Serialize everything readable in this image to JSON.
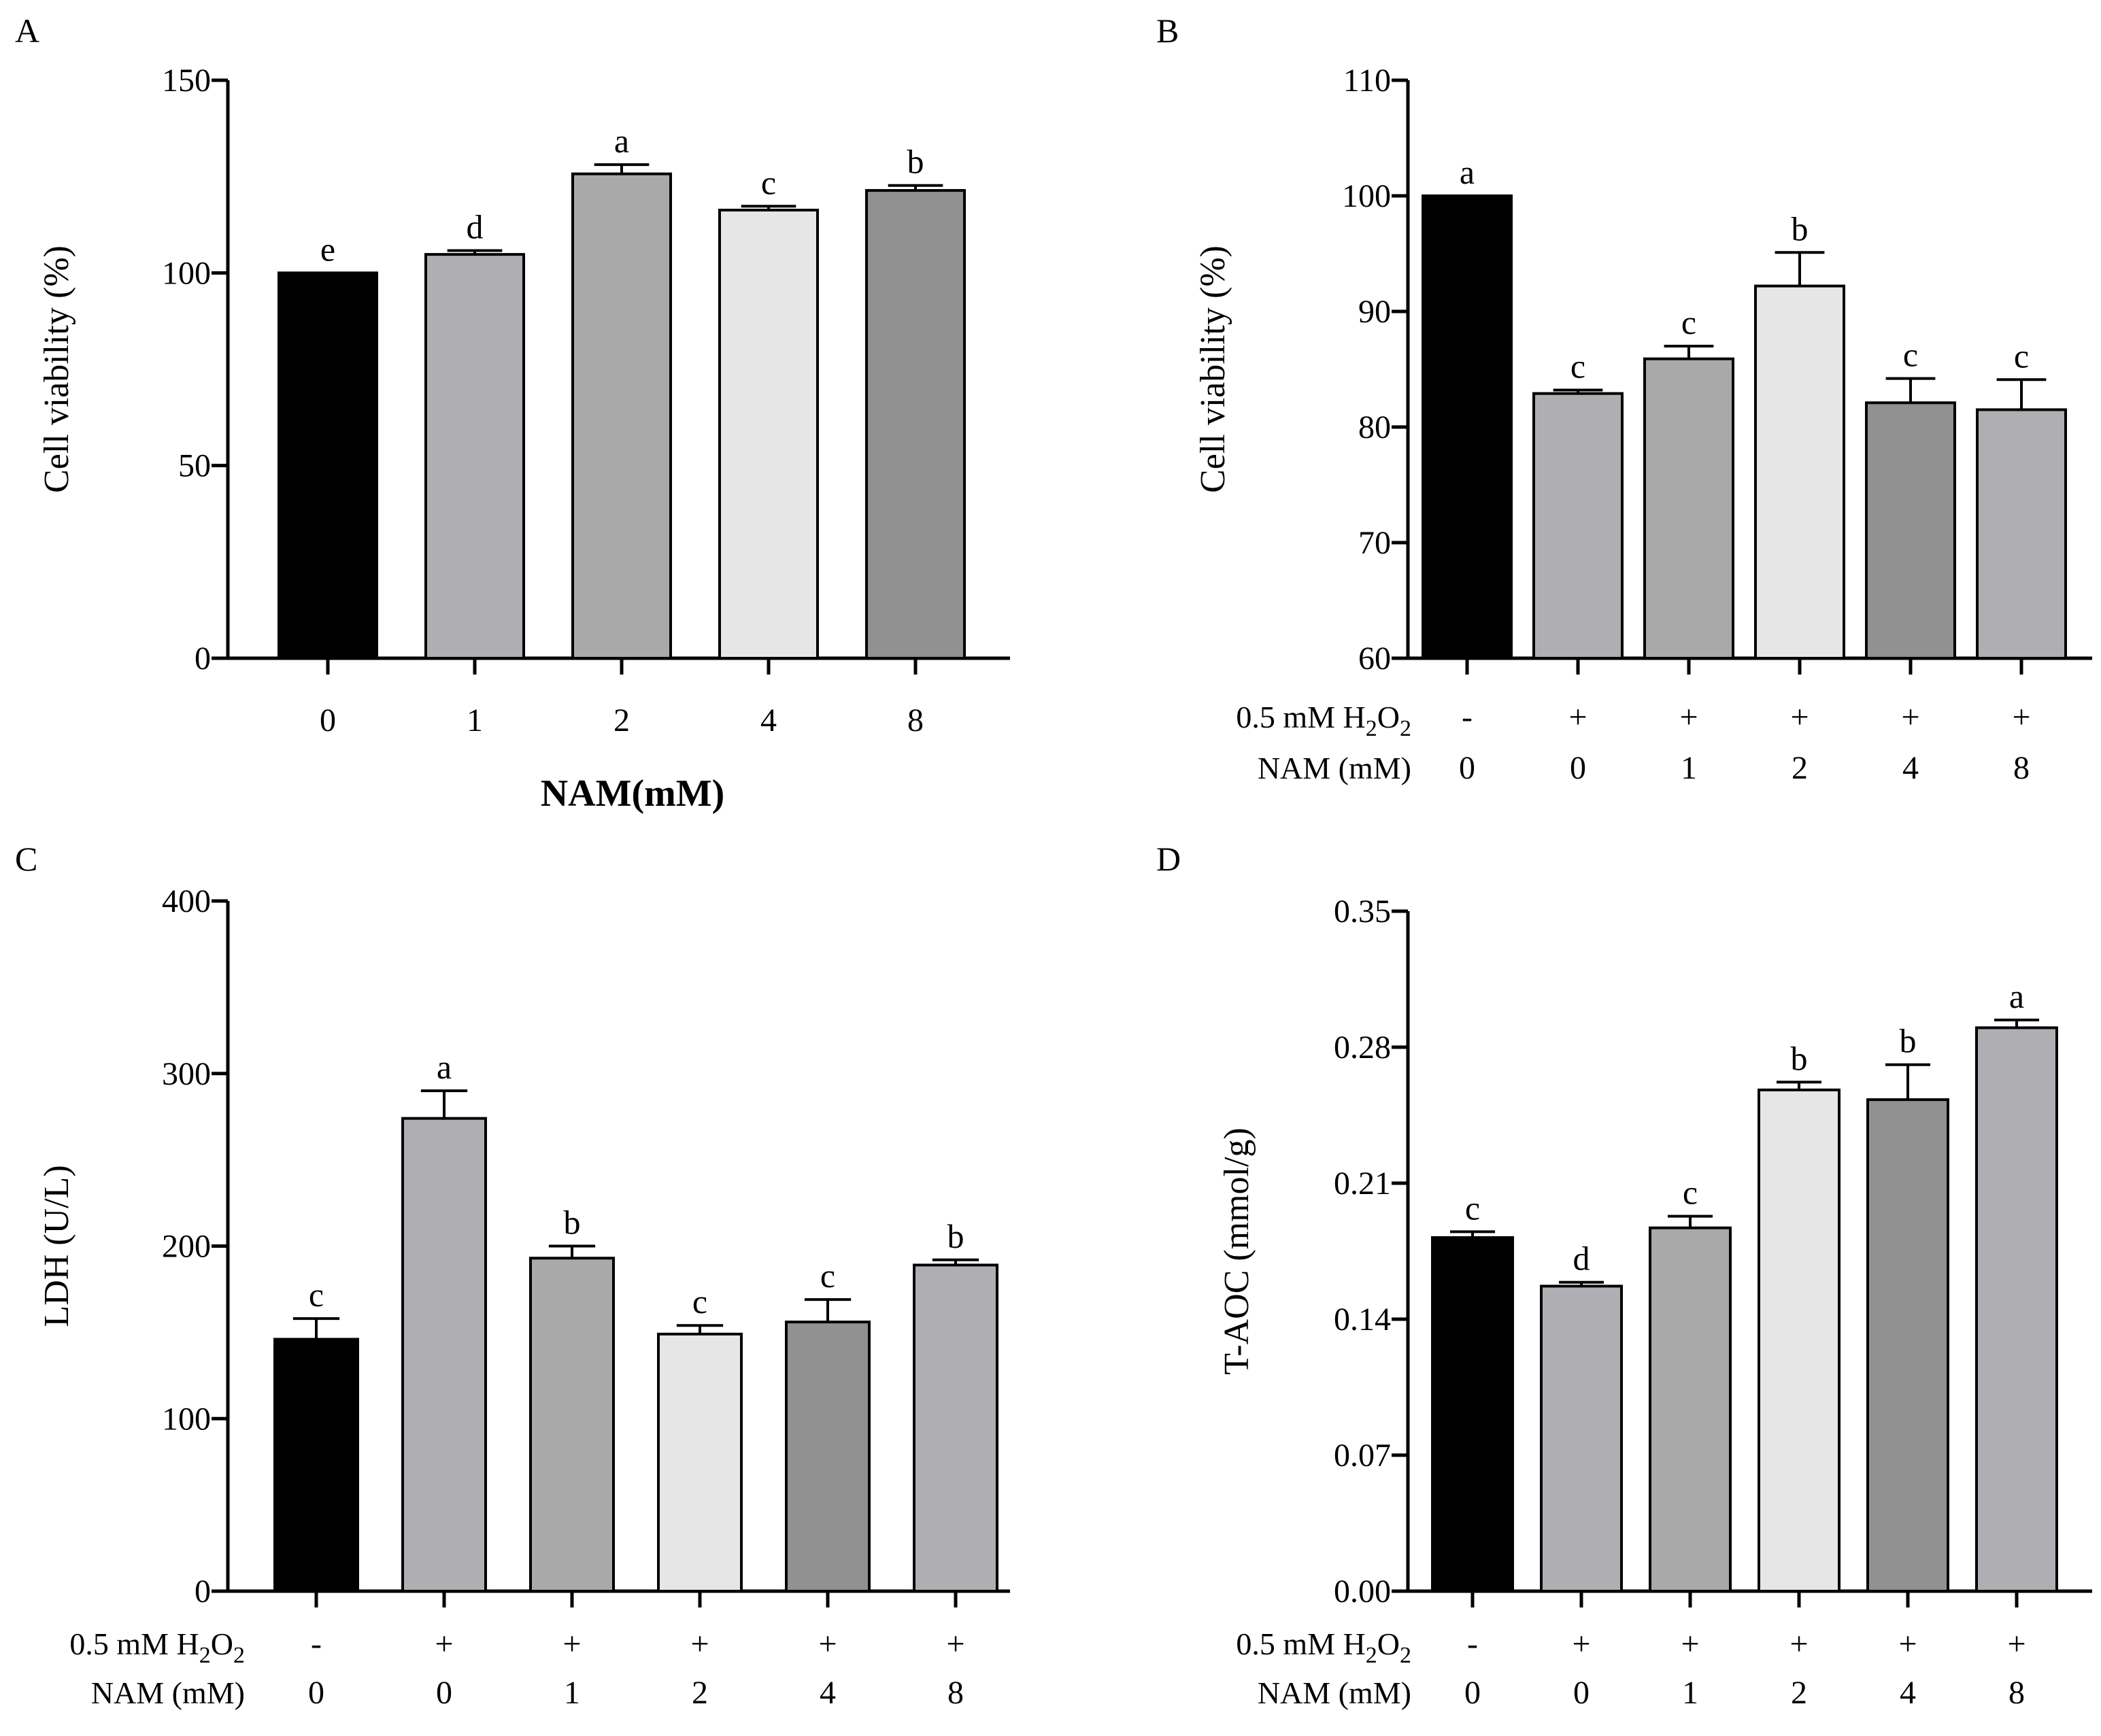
{
  "chart_data": [
    {
      "panel": "A",
      "type": "bar",
      "ylabel": "Cell viability (%)",
      "xlabel": "NAM(mM)",
      "categories": [
        "0",
        "1",
        "2",
        "4",
        "8"
      ],
      "values": [
        100,
        104.8,
        125.7,
        116.3,
        121.4
      ],
      "errors": [
        0,
        1.0,
        2.4,
        1.0,
        1.3
      ],
      "sig": [
        "e",
        "d",
        "a",
        "c",
        "b"
      ],
      "colors": [
        "#000000",
        "#aeaeb3",
        "#a9a9a9",
        "#e6e6e6",
        "#919191"
      ],
      "ylim": [
        0,
        150
      ],
      "yticks": [
        "0",
        "50",
        "100",
        "150"
      ],
      "yticks_values": [
        0,
        50,
        100,
        150
      ],
      "conditions": []
    },
    {
      "panel": "B",
      "type": "bar",
      "ylabel": "Cell viability (%)",
      "xlabel": "",
      "categories": [
        "1",
        "2",
        "3",
        "4",
        "5",
        "6"
      ],
      "values": [
        100,
        82.9,
        85.9,
        92.2,
        82.1,
        81.5
      ],
      "errors": [
        0,
        0.3,
        1.1,
        2.9,
        2.1,
        2.6
      ],
      "sig": [
        "a",
        "c",
        "c",
        "b",
        "c",
        "c"
      ],
      "colors": [
        "#000000",
        "#aeaeb3",
        "#a9a9a9",
        "#e6e6e6",
        "#919191",
        "#aeaeb3"
      ],
      "ylim": [
        60,
        110
      ],
      "yticks": [
        "60",
        "70",
        "80",
        "90",
        "100",
        "110"
      ],
      "yticks_values": [
        60,
        70,
        80,
        90,
        100,
        110
      ],
      "conditions": [
        {
          "label_main": "0.5 mM H",
          "label_sub": "2",
          "label_mid": "O",
          "label_sub2": "2",
          "values": [
            "-",
            "+",
            "+",
            "+",
            "+",
            "+"
          ]
        },
        {
          "label_main": "NAM (mM)",
          "label_sub": "",
          "label_mid": "",
          "label_sub2": "",
          "values": [
            "0",
            "0",
            "1",
            "2",
            "4",
            "8"
          ]
        }
      ]
    },
    {
      "panel": "C",
      "type": "bar",
      "ylabel": "LDH (U/L)",
      "xlabel": "",
      "categories": [
        "1",
        "2",
        "3",
        "4",
        "5",
        "6"
      ],
      "values": [
        146,
        274,
        193,
        149,
        156,
        189
      ],
      "errors": [
        12,
        16,
        7,
        5,
        13,
        3
      ],
      "sig": [
        "c",
        "a",
        "b",
        "c",
        "c",
        "b"
      ],
      "colors": [
        "#000000",
        "#aeaeb3",
        "#a9a9a9",
        "#e6e6e6",
        "#919191",
        "#aeaeb3"
      ],
      "ylim": [
        0,
        400
      ],
      "yticks": [
        "0",
        "100",
        "200",
        "300",
        "400"
      ],
      "yticks_values": [
        0,
        100,
        200,
        300,
        400
      ],
      "conditions": [
        {
          "label_main": "0.5 mM H",
          "label_sub": "2",
          "label_mid": "O",
          "label_sub2": "2",
          "values": [
            "-",
            "+",
            "+",
            "+",
            "+",
            "+"
          ]
        },
        {
          "label_main": "NAM (mM)",
          "label_sub": "",
          "label_mid": "",
          "label_sub2": "",
          "values": [
            "0",
            "0",
            "1",
            "2",
            "4",
            "8"
          ]
        }
      ]
    },
    {
      "panel": "D",
      "type": "bar",
      "ylabel": "T-AOC (mmol/g)",
      "xlabel": "",
      "categories": [
        "1",
        "2",
        "3",
        "4",
        "5",
        "6"
      ],
      "values": [
        0.182,
        0.157,
        0.187,
        0.258,
        0.253,
        0.29
      ],
      "errors": [
        0.003,
        0.002,
        0.006,
        0.004,
        0.018,
        0.004
      ],
      "sig": [
        "c",
        "d",
        "c",
        "b",
        "b",
        "a"
      ],
      "colors": [
        "#000000",
        "#aeaeb3",
        "#a9a9a9",
        "#e6e6e6",
        "#919191",
        "#aeaeb3"
      ],
      "ylim": [
        0,
        0.35
      ],
      "yticks": [
        "0.00",
        "0.07",
        "0.14",
        "0.21",
        "0.28",
        "0.35"
      ],
      "yticks_values": [
        0,
        0.07,
        0.14,
        0.21,
        0.28,
        0.35
      ],
      "conditions": [
        {
          "label_main": "0.5 mM H",
          "label_sub": "2",
          "label_mid": "O",
          "label_sub2": "2",
          "values": [
            "-",
            "+",
            "+",
            "+",
            "+",
            "+"
          ]
        },
        {
          "label_main": "NAM (mM)",
          "label_sub": "",
          "label_mid": "",
          "label_sub2": "",
          "values": [
            "0",
            "0",
            "1",
            "2",
            "4",
            "8"
          ]
        }
      ]
    }
  ]
}
